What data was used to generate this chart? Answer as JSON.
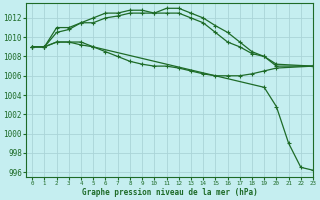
{
  "title": "Graphe pression niveau de la mer (hPa)",
  "background_color": "#c5eef0",
  "grid_color": "#aad4d8",
  "line_color": "#1e6b28",
  "xlim": [
    -0.5,
    23
  ],
  "ylim": [
    995.5,
    1013.5
  ],
  "yticks": [
    996,
    998,
    1000,
    1002,
    1004,
    1006,
    1008,
    1010,
    1012
  ],
  "xticks": [
    0,
    1,
    2,
    3,
    4,
    5,
    6,
    7,
    8,
    9,
    10,
    11,
    12,
    13,
    14,
    15,
    16,
    17,
    18,
    19,
    20,
    21,
    22,
    23
  ],
  "series": [
    {
      "x": [
        0,
        1,
        2,
        3,
        4,
        5,
        6,
        7,
        8,
        9,
        10,
        11,
        12,
        13,
        14,
        15,
        16,
        17,
        18,
        19,
        20,
        23
      ],
      "y": [
        1009.0,
        1009.0,
        1011.0,
        1011.0,
        1011.5,
        1012.0,
        1012.5,
        1012.5,
        1012.8,
        1012.8,
        1012.5,
        1013.0,
        1013.0,
        1012.5,
        1012.0,
        1011.2,
        1010.5,
        1009.5,
        1008.5,
        1008.0,
        1007.2,
        1007.0
      ],
      "markers": true
    },
    {
      "x": [
        0,
        1,
        2,
        3,
        4,
        5,
        6,
        7,
        8,
        9,
        10,
        11,
        12,
        13,
        14,
        15,
        16,
        17,
        18,
        19,
        20,
        23
      ],
      "y": [
        1009.0,
        1009.0,
        1010.5,
        1010.8,
        1011.5,
        1011.5,
        1012.0,
        1012.2,
        1012.5,
        1012.5,
        1012.5,
        1012.5,
        1012.5,
        1012.0,
        1011.5,
        1010.5,
        1009.5,
        1009.0,
        1008.3,
        1008.0,
        1007.0,
        1007.0
      ],
      "markers": true
    },
    {
      "x": [
        0,
        1,
        2,
        3,
        4,
        5,
        6,
        7,
        8,
        9,
        10,
        11,
        12,
        13,
        14,
        15,
        16,
        17,
        18,
        19,
        20,
        23
      ],
      "y": [
        1009.0,
        1009.0,
        1009.5,
        1009.5,
        1009.5,
        1009.0,
        1008.5,
        1008.0,
        1007.5,
        1007.2,
        1007.0,
        1007.0,
        1006.8,
        1006.5,
        1006.2,
        1006.0,
        1006.0,
        1006.0,
        1006.2,
        1006.5,
        1006.8,
        1007.0
      ],
      "markers": true
    },
    {
      "x": [
        0,
        1,
        2,
        3,
        4,
        5,
        19,
        20,
        21,
        22,
        23
      ],
      "y": [
        1009.0,
        1009.0,
        1009.5,
        1009.5,
        1009.2,
        1009.0,
        1004.8,
        1002.8,
        999.0,
        996.5,
        996.2
      ],
      "markers": true
    }
  ]
}
